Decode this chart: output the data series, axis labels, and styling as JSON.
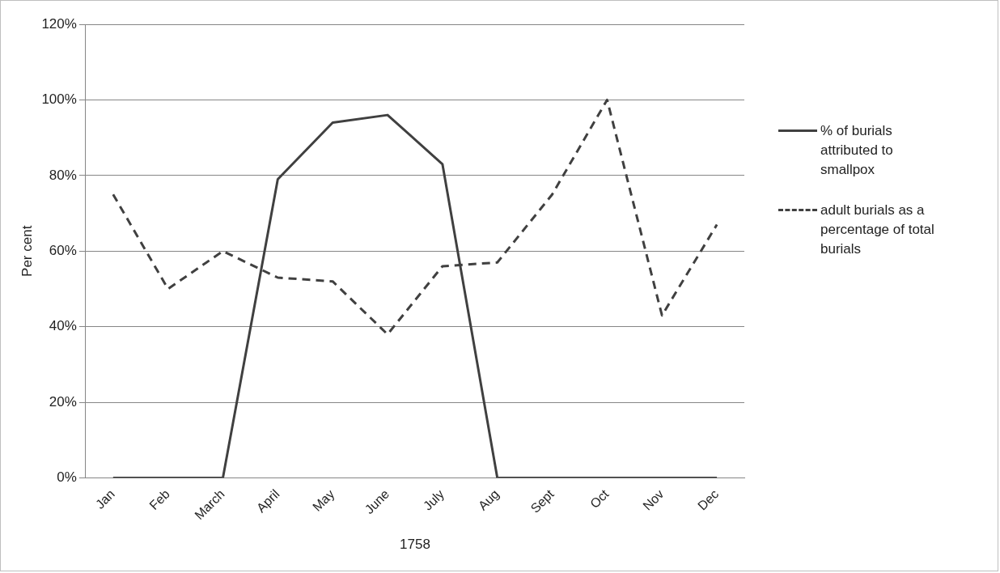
{
  "chart_data": {
    "type": "line",
    "xlabel": "1758",
    "ylabel": "Per cent",
    "categories": [
      "Jan",
      "Feb",
      "March",
      "April",
      "May",
      "June",
      "July",
      "Aug",
      "Sept",
      "Oct",
      "Nov",
      "Dec"
    ],
    "series": [
      {
        "name": "% of burials attributed to smallpox",
        "color": "#404040",
        "line_style": "solid",
        "values": [
          0,
          0,
          0,
          79,
          94,
          96,
          83,
          0,
          0,
          0,
          0,
          0
        ]
      },
      {
        "name": "adult burials as a percentage of total burials",
        "color": "#404040",
        "line_style": "dashed",
        "values": [
          75,
          50,
          60,
          53,
          52,
          38,
          56,
          57,
          75,
          100,
          43,
          67
        ]
      }
    ],
    "ylim": [
      0,
      120
    ],
    "yticks": [
      {
        "value": 0,
        "label": "0%"
      },
      {
        "value": 20,
        "label": "20%"
      },
      {
        "value": 40,
        "label": "40%"
      },
      {
        "value": 60,
        "label": "60%"
      },
      {
        "value": 80,
        "label": "80%"
      },
      {
        "value": 100,
        "label": "100%"
      },
      {
        "value": 120,
        "label": "120%"
      }
    ],
    "grid": "y",
    "legend": "right",
    "marker": "none"
  }
}
